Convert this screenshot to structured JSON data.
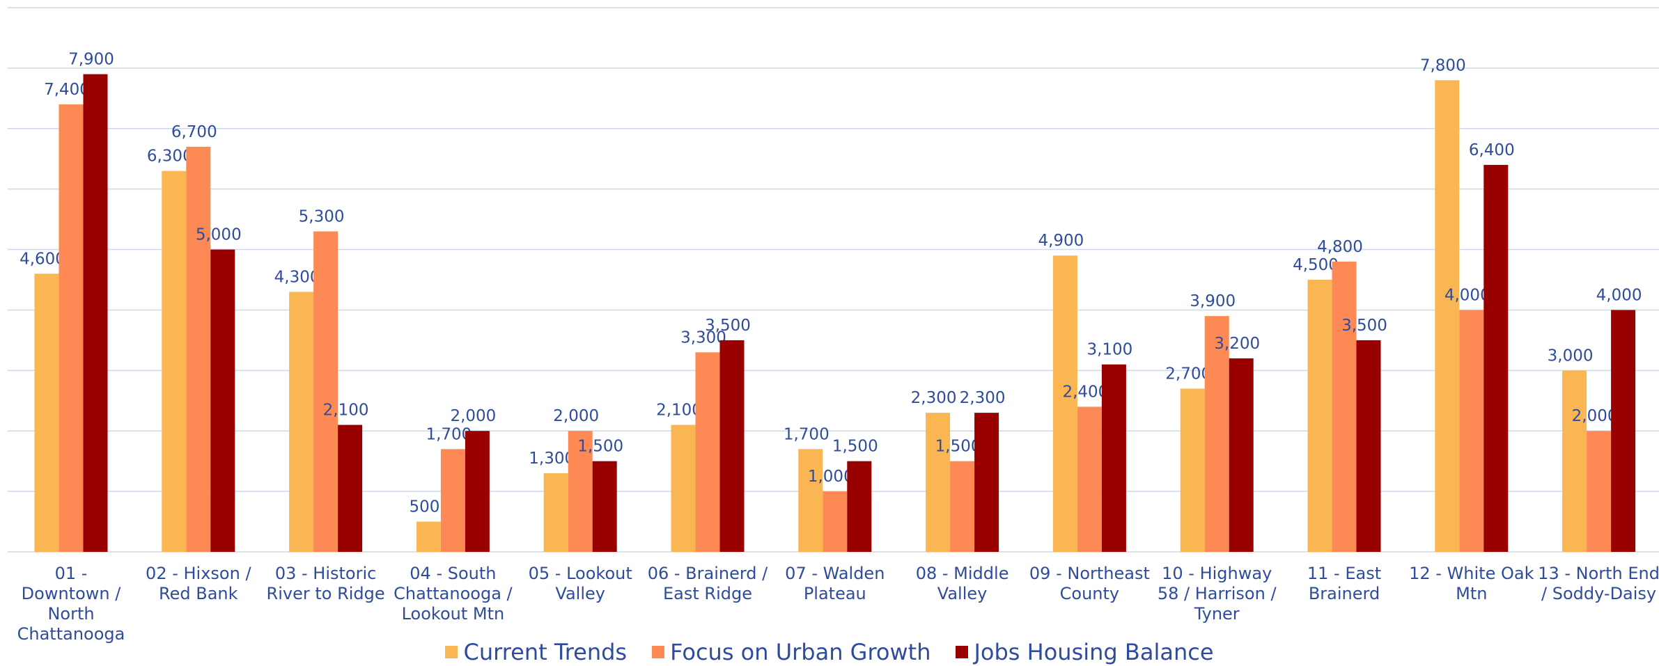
{
  "chart_data": {
    "type": "bar",
    "categories": [
      "01 - Downtown / North Chattanooga",
      "02 - Hixson / Red Bank",
      "03 - Historic River to Ridge",
      "04 - South Chattanooga / Lookout Mtn",
      "05 - Lookout Valley",
      "06 - Brainerd / East Ridge",
      "07 - Walden Plateau",
      "08 - Middle Valley",
      "09 - Northeast County",
      "10 - Highway 58 / Harrison / Tyner",
      "11 - East Brainerd",
      "12 - White Oak Mtn",
      "13 - North End / Soddy-Daisy"
    ],
    "series": [
      {
        "name": "Current Trends",
        "color": "#fbb654",
        "values": [
          4600,
          6300,
          4300,
          500,
          1300,
          2100,
          1700,
          2300,
          4900,
          2700,
          4500,
          7800,
          3000
        ],
        "value_labels": [
          "4,600",
          "6,300",
          "4,300",
          "500",
          "1,300",
          "2,100",
          "1,700",
          "2,300",
          "4,900",
          "2,700",
          "4,500",
          "7,800",
          "3,000"
        ]
      },
      {
        "name": "Focus on Urban Growth",
        "color": "#fd8a54",
        "values": [
          7400,
          6700,
          5300,
          1700,
          2000,
          3300,
          1000,
          1500,
          2400,
          3900,
          4800,
          4000,
          2000
        ],
        "value_labels": [
          "7,400",
          "6,700",
          "5,300",
          "1,700",
          "2,000",
          "3,300",
          "1,000",
          "1,500",
          "2,400",
          "3,900",
          "4,800",
          "4,000",
          "2,000"
        ]
      },
      {
        "name": "Jobs Housing Balance",
        "color": "#990000",
        "values": [
          7900,
          5000,
          2100,
          2000,
          1500,
          3500,
          1500,
          2300,
          3100,
          3200,
          3500,
          6400,
          4000
        ],
        "value_labels": [
          "7,900",
          "5,000",
          "2,100",
          "2,000",
          "1,500",
          "3,500",
          "1,500",
          "2,300",
          "3,100",
          "3,200",
          "3,500",
          "6,400",
          "4,000"
        ]
      }
    ],
    "ylim": [
      0,
      9000
    ],
    "yticks": [
      0,
      1000,
      2000,
      3000,
      4000,
      5000,
      6000,
      7000,
      8000,
      9000
    ],
    "grid": true,
    "legend": "bottom"
  }
}
